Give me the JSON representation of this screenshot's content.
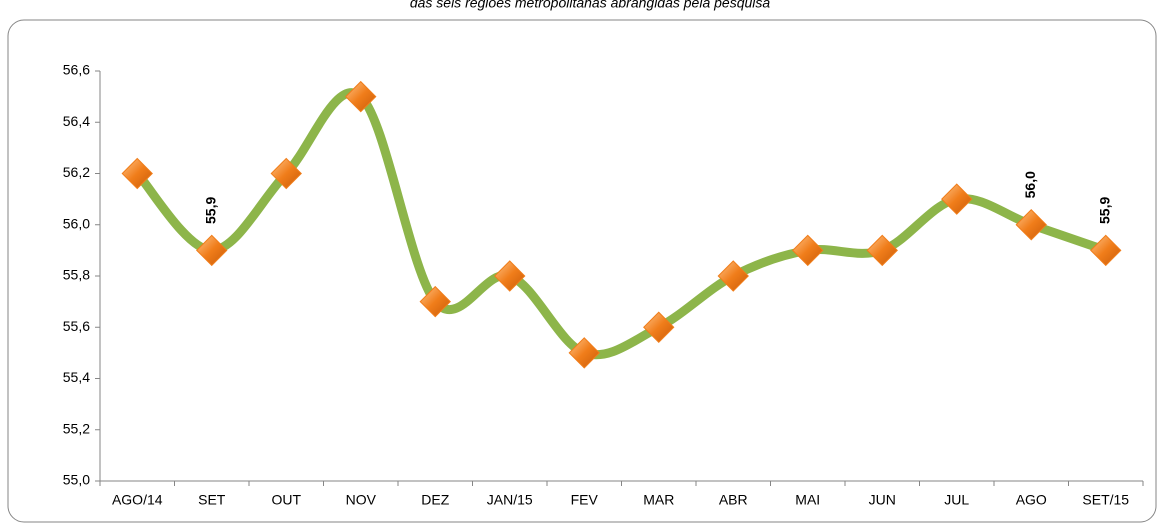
{
  "chart_data": {
    "type": "line",
    "subtitle": "das seis regiões metropolitanas abrangidas pela pesquisa",
    "categories": [
      "AGO/14",
      "SET",
      "OUT",
      "NOV",
      "DEZ",
      "JAN/15",
      "FEV",
      "MAR",
      "ABR",
      "MAI",
      "JUN",
      "JUL",
      "AGO",
      "SET/15"
    ],
    "series": [
      {
        "color": "#8db54a",
        "marker_color": "#f07d1a",
        "values": [
          56.2,
          55.9,
          56.2,
          56.5,
          55.7,
          55.8,
          55.5,
          55.6,
          55.8,
          55.9,
          55.9,
          56.1,
          56.0,
          55.9
        ],
        "value_labels": [
          null,
          "55,9",
          null,
          null,
          null,
          null,
          null,
          null,
          null,
          null,
          null,
          null,
          "56,0",
          "55,9"
        ]
      }
    ],
    "ylim": [
      55.0,
      56.6
    ],
    "yticks": [
      {
        "value": 55.0,
        "label": "55,0"
      },
      {
        "value": 55.2,
        "label": "55,2"
      },
      {
        "value": 55.4,
        "label": "55,4"
      },
      {
        "value": 55.6,
        "label": "55,6"
      },
      {
        "value": 55.8,
        "label": "55,8"
      },
      {
        "value": 56.0,
        "label": "56,0"
      },
      {
        "value": 56.2,
        "label": "56,2"
      },
      {
        "value": 56.4,
        "label": "56,4"
      },
      {
        "value": 56.6,
        "label": "56,6"
      }
    ],
    "grid": false
  }
}
